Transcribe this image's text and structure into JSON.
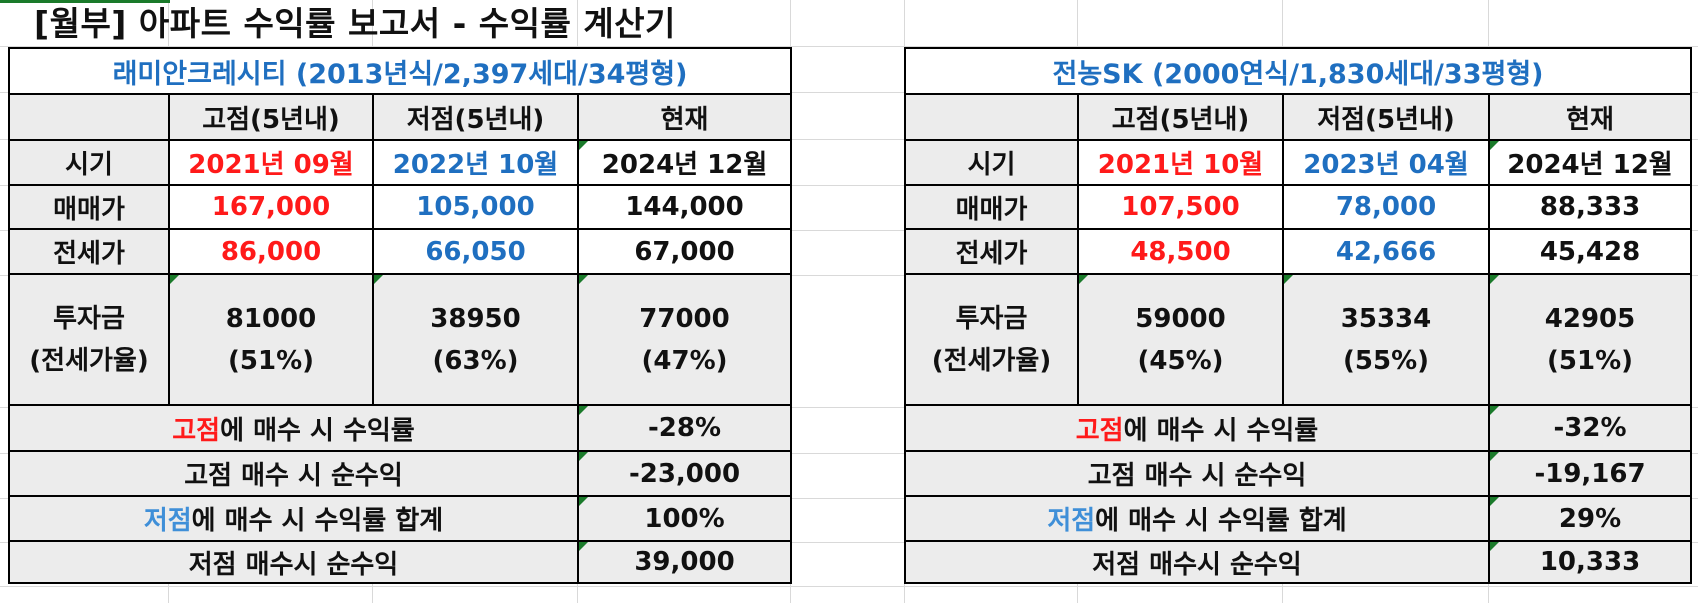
{
  "title": "[월부] 아파트 수익률 보고서 - 수익률 계산기",
  "column_headers": [
    "고점(5년내)",
    "저점(5년내)",
    "현재"
  ],
  "row_labels": {
    "period": "시기",
    "sale_price": "매매가",
    "jeonse_price": "전세가",
    "investment": "투자금",
    "investment_sub": "(전세가율)",
    "high_return_highlight": "고점",
    "high_return_rest": "에 매수 시 수익률",
    "high_net": "고점 매수 시 순수익",
    "low_return_highlight": "저점",
    "low_return_rest": "에 매수 시 수익률 합계",
    "low_net": "저점 매수시 순수익"
  },
  "left": {
    "name": "래미안크레시티 (2013년식/2,397세대/34평형)",
    "period": [
      "2021년 09월",
      "2022년 10월",
      "2024년 12월"
    ],
    "sale_price": [
      "167,000",
      "105,000",
      "144,000"
    ],
    "jeonse_price": [
      "86,000",
      "66,050",
      "67,000"
    ],
    "investment": [
      "81000",
      "38950",
      "77000"
    ],
    "jeonse_ratio": [
      "(51%)",
      "(63%)",
      "(47%)"
    ],
    "high_return": "-28%",
    "high_net": "-23,000",
    "low_return": "100%",
    "low_net": "39,000"
  },
  "right": {
    "name": "전농SK (2000연식/1,830세대/33평형)",
    "period": [
      "2021년 10월",
      "2023년 04월",
      "2024년 12월"
    ],
    "sale_price": [
      "107,500",
      "78,000",
      "88,333"
    ],
    "jeonse_price": [
      "48,500",
      "42,666",
      "45,428"
    ],
    "investment": [
      "59000",
      "35334",
      "42905"
    ],
    "jeonse_ratio": [
      "(45%)",
      "(55%)",
      "(51%)"
    ],
    "high_return": "-32%",
    "high_net": "-19,167",
    "low_return": "29%",
    "low_net": "10,333"
  },
  "colors": {
    "high": "#ff1a1a",
    "low": "#1f6fc0",
    "cell_grey": "#ececec",
    "comment_marker": "#1a7a2a"
  }
}
